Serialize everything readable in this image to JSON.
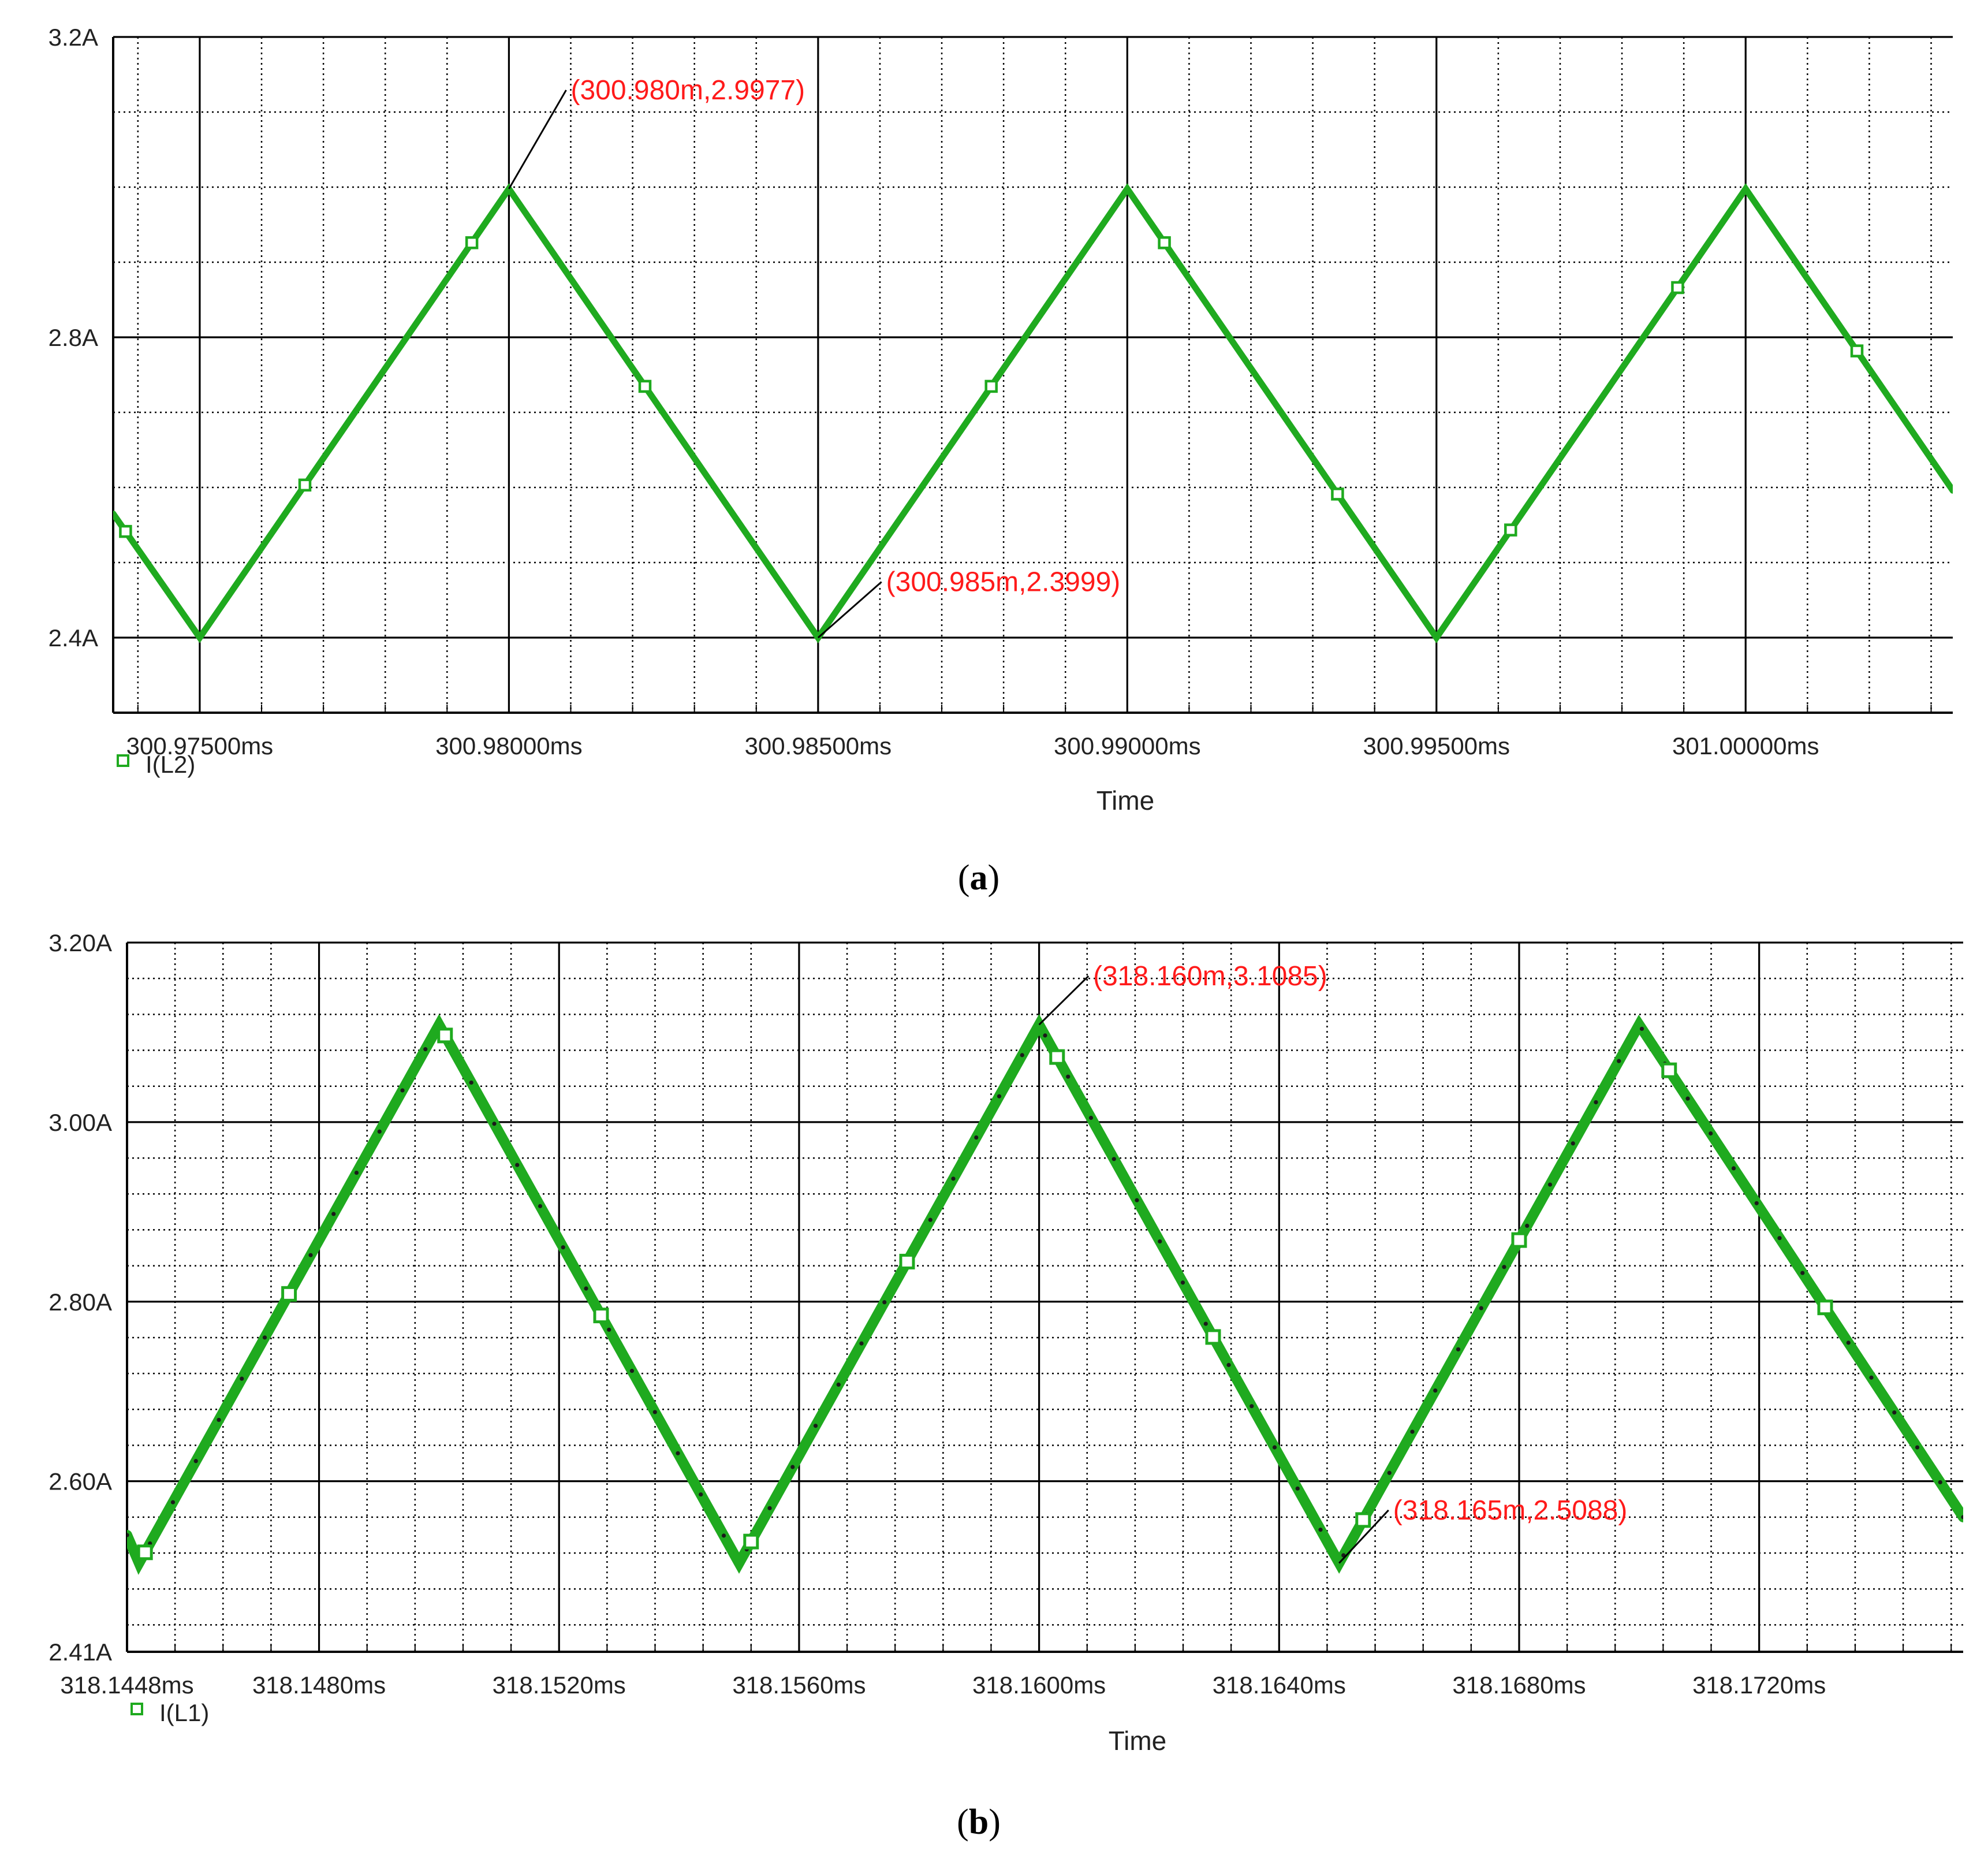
{
  "colors": {
    "trace": "#1faa1f",
    "annotation": "#ff1a1a",
    "grid_major": "#000000",
    "grid_minor": "#000000"
  },
  "chart_data": [
    {
      "type": "line",
      "caption": "a",
      "xlabel": "Time",
      "ylim": [
        2.3,
        3.2
      ],
      "xlim": [
        300.9736,
        301.00335
      ],
      "y_ticks": [
        {
          "value": 2.4,
          "label": "2.4A"
        },
        {
          "value": 2.8,
          "label": "2.8A"
        },
        {
          "value": 3.2,
          "label": "3.2A"
        }
      ],
      "y_minor_step": 0.1,
      "x_ticks": [
        {
          "value": 300.975,
          "label": "300.97500ms"
        },
        {
          "value": 300.98,
          "label": "300.98000ms"
        },
        {
          "value": 300.985,
          "label": "300.98500ms"
        },
        {
          "value": 300.99,
          "label": "300.99000ms"
        },
        {
          "value": 300.995,
          "label": "300.99500ms"
        },
        {
          "value": 301.0,
          "label": "301.00000ms"
        }
      ],
      "x_minor_step": 0.001,
      "series": [
        {
          "name": "I(L2)",
          "x": [
            300.9736,
            300.975,
            300.98,
            300.985,
            300.99,
            300.995,
            301.0,
            301.00335
          ],
          "y": [
            2.565,
            2.4,
            2.9977,
            2.3999,
            2.9977,
            2.3999,
            2.9977,
            2.596
          ],
          "markers_x": [
            300.9738,
            300.9767,
            300.9794,
            300.9822,
            300.9878,
            300.9906,
            300.9934,
            300.9962,
            300.9989,
            301.0018
          ]
        }
      ],
      "annotations": [
        {
          "text": "(300.980m,2.9977)",
          "x": 300.98,
          "y": 2.9977,
          "label_x": 300.981,
          "label_y": 3.12
        },
        {
          "text": "(300.985m,2.3999)",
          "x": 300.985,
          "y": 2.3999,
          "label_x": 300.9861,
          "label_y": 2.465
        }
      ]
    },
    {
      "type": "line",
      "caption": "b",
      "xlabel": "Time",
      "ylim": [
        2.41,
        3.2
      ],
      "xlim": [
        318.1448,
        318.1754
      ],
      "y_ticks": [
        {
          "value": 2.41,
          "label": "2.41A"
        },
        {
          "value": 2.6,
          "label": "2.60A"
        },
        {
          "value": 2.8,
          "label": "2.80A"
        },
        {
          "value": 3.0,
          "label": "3.00A"
        },
        {
          "value": 3.2,
          "label": "3.20A"
        }
      ],
      "y_minor_step": 0.04,
      "x_ticks": [
        {
          "value": 318.1448,
          "label": "318.1448ms"
        },
        {
          "value": 318.148,
          "label": "318.1480ms"
        },
        {
          "value": 318.152,
          "label": "318.1520ms"
        },
        {
          "value": 318.156,
          "label": "318.1560ms"
        },
        {
          "value": 318.16,
          "label": "318.1600ms"
        },
        {
          "value": 318.164,
          "label": "318.1640ms"
        },
        {
          "value": 318.168,
          "label": "318.1680ms"
        },
        {
          "value": 318.172,
          "label": "318.1720ms"
        }
      ],
      "x_minor_step": 0.0008,
      "series": [
        {
          "name": "I(L1)",
          "x": [
            318.1448,
            318.145,
            318.15,
            318.155,
            318.16,
            318.165,
            318.17,
            318.1754
          ],
          "y": [
            2.54,
            2.5088,
            3.1085,
            2.5088,
            3.1085,
            2.5088,
            3.1085,
            2.56
          ],
          "markers_x": [
            318.1451,
            318.1475,
            318.1501,
            318.1527,
            318.1552,
            318.1578,
            318.1603,
            318.1629,
            318.1654,
            318.168,
            318.1705,
            318.1731
          ]
        }
      ],
      "annotations": [
        {
          "text": "(318.160m,3.1085)",
          "x": 318.16,
          "y": 3.1085,
          "label_x": 318.1609,
          "label_y": 3.155
        },
        {
          "text": "(318.165m,2.5088)",
          "x": 318.165,
          "y": 2.5088,
          "label_x": 318.1659,
          "label_y": 2.56
        }
      ]
    }
  ]
}
